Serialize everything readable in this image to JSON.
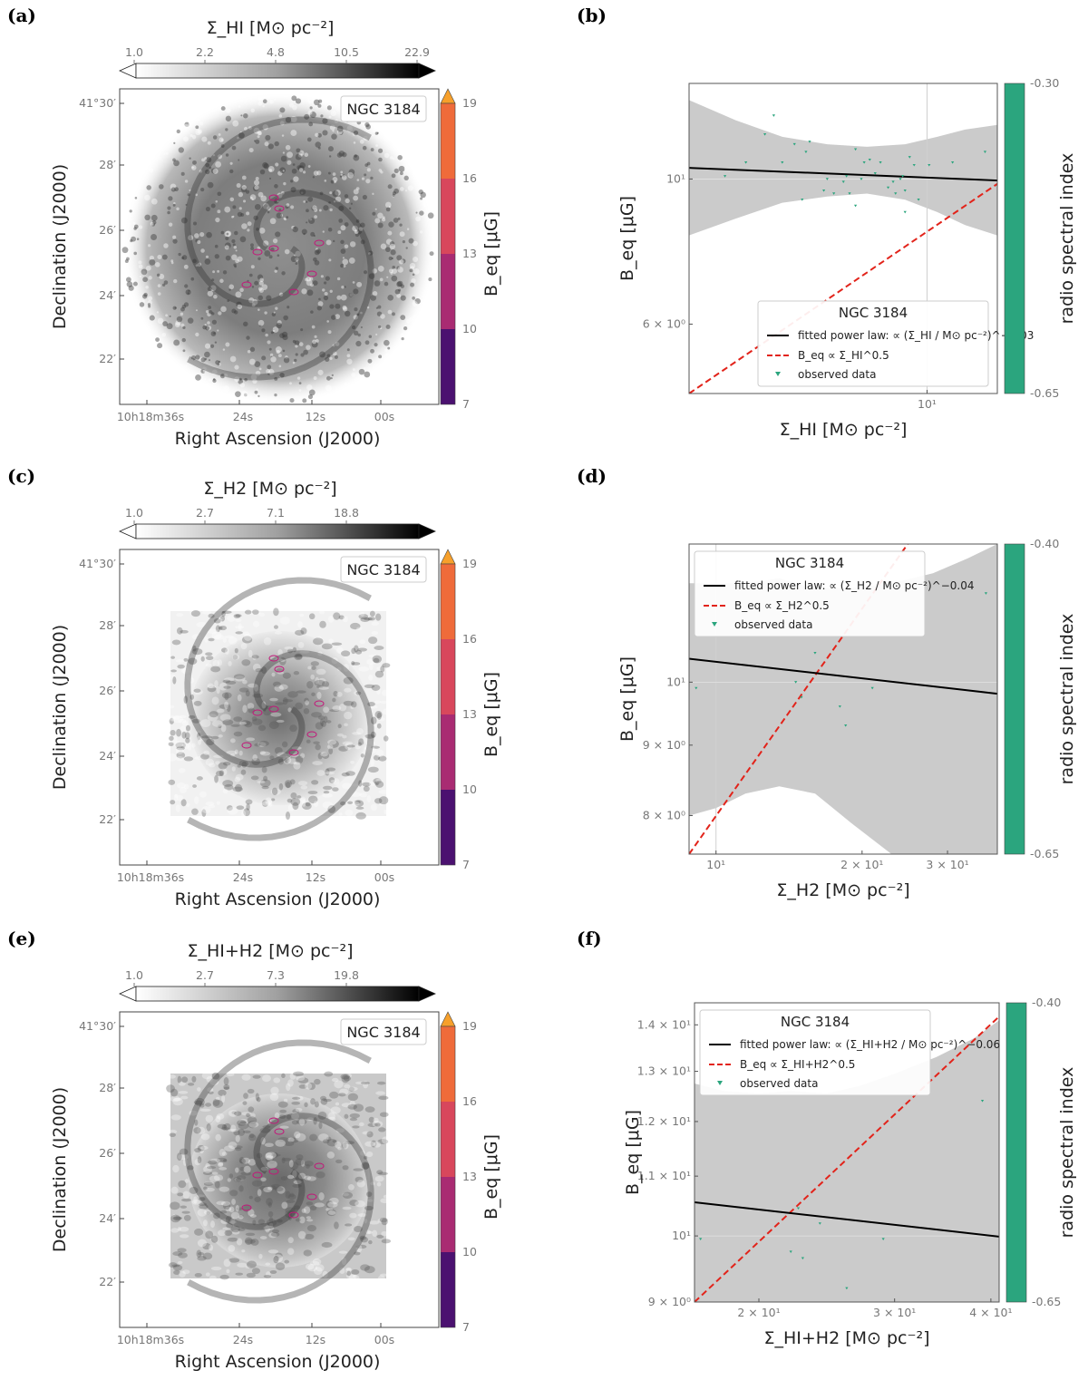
{
  "panels": [
    {
      "id": "a",
      "label": "(a)",
      "kind": "map",
      "colorbar": {
        "title": "Σ_HI [M⊙ pc⁻²]",
        "ticks": [
          "1.0",
          "2.2",
          "4.8",
          "10.5",
          "22.9"
        ]
      },
      "galaxy_label": "NGC 3184",
      "beq_bar": {
        "title": "B_eq [μG]",
        "ticks": [
          "7",
          "10",
          "13",
          "16",
          "19"
        ],
        "colors": [
          "#4b1170",
          "#7a1d7a",
          "#a92b72",
          "#d8475c",
          "#ef6b3a",
          "#f7a02b"
        ]
      },
      "ra_ticks": [
        "10h18m36s",
        "24s",
        "12s",
        "00s"
      ],
      "dec_ticks": [
        "41°30′",
        "28′",
        "26′",
        "24′",
        "22′"
      ],
      "xlabel": "Right Ascension (J2000)",
      "ylabel": "Declination (J2000)",
      "map_style": "hi"
    },
    {
      "id": "c",
      "label": "(c)",
      "kind": "map",
      "colorbar": {
        "title": "Σ_H2 [M⊙ pc⁻²]",
        "ticks": [
          "1.0",
          "2.7",
          "7.1",
          "18.8"
        ]
      },
      "galaxy_label": "NGC 3184",
      "beq_bar": {
        "title": "B_eq [μG]",
        "ticks": [
          "7",
          "10",
          "13",
          "16",
          "19"
        ],
        "colors": [
          "#4b1170",
          "#7a1d7a",
          "#a92b72",
          "#d8475c",
          "#ef6b3a",
          "#f7a02b"
        ]
      },
      "ra_ticks": [
        "10h18m36s",
        "24s",
        "12s",
        "00s"
      ],
      "dec_ticks": [
        "41°30′",
        "28′",
        "26′",
        "24′",
        "22′"
      ],
      "xlabel": "Right Ascension (J2000)",
      "ylabel": "Declination (J2000)",
      "map_style": "h2"
    },
    {
      "id": "e",
      "label": "(e)",
      "kind": "map",
      "colorbar": {
        "title": "Σ_HI+H2 [M⊙ pc⁻²]",
        "ticks": [
          "1.0",
          "2.7",
          "7.3",
          "19.8"
        ]
      },
      "galaxy_label": "NGC 3184",
      "beq_bar": {
        "title": "B_eq [μG]",
        "ticks": [
          "7",
          "10",
          "13",
          "16",
          "19"
        ],
        "colors": [
          "#4b1170",
          "#7a1d7a",
          "#a92b72",
          "#d8475c",
          "#ef6b3a",
          "#f7a02b"
        ]
      },
      "ra_ticks": [
        "10h18m36s",
        "24s",
        "12s",
        "00s"
      ],
      "dec_ticks": [
        "41°30′",
        "28′",
        "26′",
        "24′",
        "22′"
      ],
      "xlabel": "Right Ascension (J2000)",
      "ylabel": "Declination (J2000)",
      "map_style": "total"
    }
  ],
  "chart_data": [
    {
      "id": "b",
      "label": "(b)",
      "type": "scatter",
      "xscale": "log",
      "yscale": "log",
      "xlim": [
        3.2,
        14.0
      ],
      "ylim": [
        4.7,
        14.0
      ],
      "xticks": [
        {
          "v": 10,
          "label": "10¹"
        }
      ],
      "yticks": [
        {
          "v": 6,
          "label": "6 × 10⁰"
        },
        {
          "v": 10,
          "label": "10¹"
        }
      ],
      "xlabel": "Σ_HI [M⊙ pc⁻²]",
      "ylabel": "B_eq [μG]",
      "legend_title": "NGC 3184",
      "legend_position": "lower-right",
      "legend": {
        "fit": "fitted power law: ∝ (Σ_HI / M⊙ pc⁻²)^−0.03",
        "ref": "B_eq ∝ Σ_HI^0.5",
        "obs": "observed data"
      },
      "fit": {
        "slope": -0.03,
        "x0": 3.2,
        "y0": 10.4
      },
      "reference": {
        "slope": 0.5,
        "x0": 3.2,
        "y0": 4.7
      },
      "band": {
        "x": [
          3.2,
          4.0,
          5.0,
          6.2,
          7.5,
          9.0,
          10.5,
          12.0,
          14.0
        ],
        "upper": [
          13.2,
          12.3,
          11.6,
          11.3,
          11.2,
          11.3,
          11.6,
          11.9,
          12.1
        ],
        "lower": [
          8.2,
          8.7,
          9.2,
          9.4,
          9.5,
          9.3,
          8.9,
          8.5,
          8.2
        ]
      },
      "grid_x": [
        10
      ],
      "points": [
        [
          3.8,
          10.1
        ],
        [
          4.2,
          10.6
        ],
        [
          4.6,
          11.7
        ],
        [
          4.8,
          12.5
        ],
        [
          5.0,
          10.6
        ],
        [
          5.3,
          11.3
        ],
        [
          5.6,
          11.0
        ],
        [
          5.7,
          11.4
        ],
        [
          5.5,
          9.3
        ],
        [
          6.1,
          9.6
        ],
        [
          6.2,
          10.0
        ],
        [
          6.4,
          9.5
        ],
        [
          6.7,
          9.9
        ],
        [
          6.8,
          10.1
        ],
        [
          6.9,
          9.5
        ],
        [
          7.1,
          11.1
        ],
        [
          7.1,
          9.1
        ],
        [
          7.3,
          10.0
        ],
        [
          7.4,
          10.6
        ],
        [
          7.6,
          10.7
        ],
        [
          7.8,
          10.2
        ],
        [
          8.0,
          10.6
        ],
        [
          8.3,
          9.7
        ],
        [
          8.5,
          9.9
        ],
        [
          8.6,
          9.5
        ],
        [
          8.8,
          10.0
        ],
        [
          8.9,
          10.1
        ],
        [
          9.0,
          9.6
        ],
        [
          9.0,
          8.9
        ],
        [
          9.2,
          10.8
        ],
        [
          9.4,
          10.5
        ],
        [
          9.6,
          9.3
        ],
        [
          10.1,
          10.5
        ],
        [
          11.3,
          10.6
        ],
        [
          13.2,
          11.0
        ]
      ],
      "colorbar": {
        "label": "radio spectral index",
        "ticks": [
          "-0.30",
          "-0.65"
        ],
        "color": "#2ba57e"
      }
    },
    {
      "id": "d",
      "label": "(d)",
      "type": "scatter",
      "xscale": "log",
      "yscale": "log",
      "xlim": [
        8.8,
        38.0
      ],
      "ylim": [
        7.5,
        12.6
      ],
      "xticks": [
        {
          "v": 10,
          "label": "10¹"
        },
        {
          "v": 20,
          "label": "2 × 10¹"
        },
        {
          "v": 30,
          "label": "3 × 10¹"
        }
      ],
      "yticks": [
        {
          "v": 8,
          "label": "8 × 10⁰"
        },
        {
          "v": 9,
          "label": "9 × 10⁰"
        },
        {
          "v": 10,
          "label": "10¹"
        }
      ],
      "xlabel": "Σ_H2 [M⊙ pc⁻²]",
      "ylabel": "B_eq [μG]",
      "legend_title": "NGC 3184",
      "legend_position": "upper-left",
      "legend": {
        "fit": "fitted power law: ∝ (Σ_H2 / M⊙ pc⁻²)^−0.04",
        "ref": "B_eq ∝ Σ_H2^0.5",
        "obs": "observed data"
      },
      "fit": {
        "slope": -0.04,
        "x0": 8.8,
        "y0": 10.4
      },
      "reference": {
        "slope": 0.5,
        "x0": 8.8,
        "y0": 7.5
      },
      "band": {
        "x": [
          8.8,
          10.0,
          11.5,
          13.5,
          16.0,
          19.0,
          23.0,
          28.0,
          33.0,
          38.0
        ],
        "upper": [
          11.8,
          11.8,
          11.8,
          11.9,
          11.7,
          11.7,
          11.8,
          12.0,
          12.3,
          12.6
        ],
        "lower": [
          8.0,
          8.1,
          8.3,
          8.4,
          8.3,
          7.9,
          7.5,
          7.5,
          7.5,
          7.5
        ]
      },
      "grid_x": [
        10
      ],
      "points": [
        [
          9.1,
          9.9
        ],
        [
          14.6,
          10.0
        ],
        [
          15.0,
          9.75
        ],
        [
          16.0,
          10.5
        ],
        [
          18.0,
          9.6
        ],
        [
          18.5,
          9.3
        ],
        [
          21.0,
          9.9
        ],
        [
          36.0,
          11.6
        ]
      ],
      "colorbar": {
        "label": "radio spectral index",
        "ticks": [
          "-0.40",
          "-0.65"
        ],
        "color": "#2ba57e"
      }
    },
    {
      "id": "f",
      "label": "(f)",
      "type": "scatter",
      "xscale": "log",
      "yscale": "log",
      "xlim": [
        16.5,
        41.0
      ],
      "ylim": [
        9.0,
        14.5
      ],
      "xticks": [
        {
          "v": 20,
          "label": "2 × 10¹"
        },
        {
          "v": 30,
          "label": "3 × 10¹"
        },
        {
          "v": 40,
          "label": "4 × 10¹"
        }
      ],
      "yticks": [
        {
          "v": 9,
          "label": "9 × 10⁰"
        },
        {
          "v": 10,
          "label": "10¹"
        },
        {
          "v": 11,
          "label": "1.1 × 10¹"
        },
        {
          "v": 12,
          "label": "1.2 × 10¹"
        },
        {
          "v": 13,
          "label": "1.3 × 10¹"
        },
        {
          "v": 14,
          "label": "1.4 × 10¹"
        }
      ],
      "xlabel": "Σ_HI+H2 [M⊙ pc⁻²]",
      "ylabel": "B_eq [μG]",
      "legend_title": "NGC 3184",
      "legend_position": "upper-left",
      "legend": {
        "fit": "fitted power law: ∝ (Σ_HI+H2 / M⊙ pc⁻²)^−0.06",
        "ref": "B_eq ∝ Σ_HI+H2^0.5",
        "obs": "observed data"
      },
      "fit": {
        "slope": -0.06,
        "x0": 16.5,
        "y0": 10.55
      },
      "reference": {
        "slope": 0.5,
        "x0": 16.5,
        "y0": 9.0
      },
      "band": {
        "x": [
          16.5,
          18.0,
          20.0,
          22.0,
          24.5,
          27.0,
          30.0,
          34.0,
          38.0,
          41.0
        ],
        "upper": [
          12.75,
          12.6,
          12.55,
          12.6,
          12.55,
          12.7,
          12.95,
          13.3,
          13.7,
          14.1
        ],
        "lower": [
          9.0,
          9.0,
          9.0,
          9.0,
          9.0,
          9.0,
          9.0,
          9.0,
          9.0,
          9.0
        ]
      },
      "grid_x": [],
      "points": [
        [
          16.8,
          9.95
        ],
        [
          22.0,
          9.75
        ],
        [
          22.5,
          10.45
        ],
        [
          22.8,
          9.65
        ],
        [
          24.0,
          10.2
        ],
        [
          26.0,
          9.2
        ],
        [
          29.0,
          9.95
        ],
        [
          39.0,
          12.4
        ]
      ],
      "colorbar": {
        "label": "radio spectral index",
        "ticks": [
          "-0.40",
          "-0.65"
        ],
        "color": "#2ba57e"
      }
    }
  ]
}
